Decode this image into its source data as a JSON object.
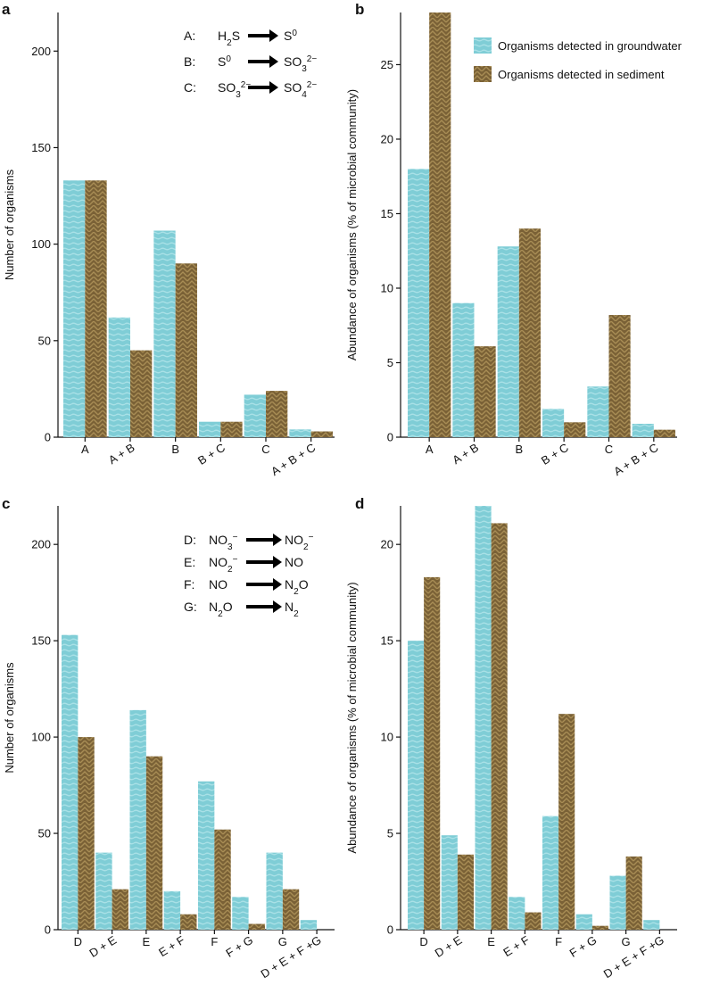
{
  "colors": {
    "groundwater": "#7fcdd6",
    "groundwater_stripe": "#a8e0e6",
    "sediment": "#7a6136",
    "sediment_stripe": "#a88d55"
  },
  "legend": {
    "groundwater": "Organisms detected in groundwater",
    "sediment": "Organisms detected in sediment"
  },
  "sulfur_reactions": [
    {
      "letter": "A:",
      "reactant": [
        {
          "t": "H"
        },
        {
          "t": "2",
          "s": "sub"
        },
        {
          "t": "S"
        }
      ],
      "product": [
        {
          "t": "S"
        },
        {
          "t": "0",
          "s": "sup"
        }
      ]
    },
    {
      "letter": "B:",
      "reactant": [
        {
          "t": "S"
        },
        {
          "t": "0",
          "s": "sup"
        }
      ],
      "product": [
        {
          "t": "SO"
        },
        {
          "t": "3",
          "s": "sub"
        },
        {
          "t": "2−",
          "s": "sup"
        }
      ]
    },
    {
      "letter": "C:",
      "reactant": [
        {
          "t": "SO"
        },
        {
          "t": "3",
          "s": "sub"
        },
        {
          "t": "2−",
          "s": "sup"
        }
      ],
      "product": [
        {
          "t": "SO"
        },
        {
          "t": "4",
          "s": "sub"
        },
        {
          "t": "2−",
          "s": "sup"
        }
      ]
    }
  ],
  "nitrogen_reactions": [
    {
      "letter": "D:",
      "reactant": [
        {
          "t": "NO"
        },
        {
          "t": "3",
          "s": "sub"
        },
        {
          "t": "−",
          "s": "sup"
        }
      ],
      "product": [
        {
          "t": "NO"
        },
        {
          "t": "2",
          "s": "sub"
        },
        {
          "t": "−",
          "s": "sup"
        }
      ]
    },
    {
      "letter": "E:",
      "reactant": [
        {
          "t": "NO"
        },
        {
          "t": "2",
          "s": "sub"
        },
        {
          "t": "−",
          "s": "sup"
        }
      ],
      "product": [
        {
          "t": "NO"
        }
      ]
    },
    {
      "letter": "F:",
      "reactant": [
        {
          "t": "NO"
        }
      ],
      "product": [
        {
          "t": "N"
        },
        {
          "t": "2",
          "s": "sub"
        },
        {
          "t": "O"
        }
      ]
    },
    {
      "letter": "G:",
      "reactant": [
        {
          "t": "N"
        },
        {
          "t": "2",
          "s": "sub"
        },
        {
          "t": "O"
        }
      ],
      "product": [
        {
          "t": "N"
        },
        {
          "t": "2",
          "s": "sub"
        }
      ]
    }
  ],
  "chart_data": [
    {
      "panel": "a",
      "type": "bar",
      "ylabel": "Number of organisms",
      "ylim": [
        0,
        220
      ],
      "yticks": [
        0,
        50,
        100,
        150,
        200
      ],
      "categories": [
        "A",
        "A + B",
        "B",
        "B + C",
        "C",
        "A + B + C"
      ],
      "series": [
        {
          "name": "Organisms detected in groundwater",
          "values": [
            133,
            62,
            107,
            8,
            22,
            4
          ]
        },
        {
          "name": "Organisms detected in sediment",
          "values": [
            133,
            45,
            90,
            8,
            24,
            3
          ]
        }
      ],
      "inset": "sulfur_reactions",
      "grid": false
    },
    {
      "panel": "b",
      "type": "bar",
      "ylabel": "Abundance of organisms (% of microbial community)",
      "ylim": [
        0,
        28.5
      ],
      "yticks": [
        0,
        5,
        10,
        15,
        20,
        25
      ],
      "categories": [
        "A",
        "A + B",
        "B",
        "B + C",
        "C",
        "A + B + C"
      ],
      "series": [
        {
          "name": "Organisms detected in groundwater",
          "values": [
            18.0,
            9.0,
            12.8,
            1.9,
            3.4,
            0.9
          ]
        },
        {
          "name": "Organisms detected in sediment",
          "values": [
            28.5,
            6.1,
            14.0,
            1.0,
            8.2,
            0.5
          ]
        }
      ],
      "legend": "top-right",
      "grid": false
    },
    {
      "panel": "c",
      "type": "bar",
      "ylabel": "Number of organisms",
      "ylim": [
        0,
        220
      ],
      "yticks": [
        0,
        50,
        100,
        150,
        200
      ],
      "categories": [
        "D",
        "D + E",
        "E",
        "E + F",
        "F",
        "F + G",
        "G",
        "D + E + F +G"
      ],
      "series": [
        {
          "name": "Organisms detected in groundwater",
          "values": [
            153,
            40,
            114,
            20,
            77,
            17,
            40,
            5
          ]
        },
        {
          "name": "Organisms detected in sediment",
          "values": [
            100,
            21,
            90,
            8,
            52,
            3,
            21,
            0
          ]
        }
      ],
      "inset": "nitrogen_reactions",
      "grid": false
    },
    {
      "panel": "d",
      "type": "bar",
      "ylabel": "Abundance of organisms (% of microbial community)",
      "ylim": [
        0,
        22
      ],
      "yticks": [
        0,
        5,
        10,
        15,
        20
      ],
      "categories": [
        "D",
        "D + E",
        "E",
        "E + F",
        "F",
        "F + G",
        "G",
        "D + E + F +G"
      ],
      "series": [
        {
          "name": "Organisms detected in groundwater",
          "values": [
            15.0,
            4.9,
            22.0,
            1.7,
            5.9,
            0.8,
            2.8,
            0.5
          ]
        },
        {
          "name": "Organisms detected in sediment",
          "values": [
            18.3,
            3.9,
            21.1,
            0.9,
            11.2,
            0.2,
            3.8,
            0
          ]
        }
      ],
      "grid": false
    }
  ]
}
